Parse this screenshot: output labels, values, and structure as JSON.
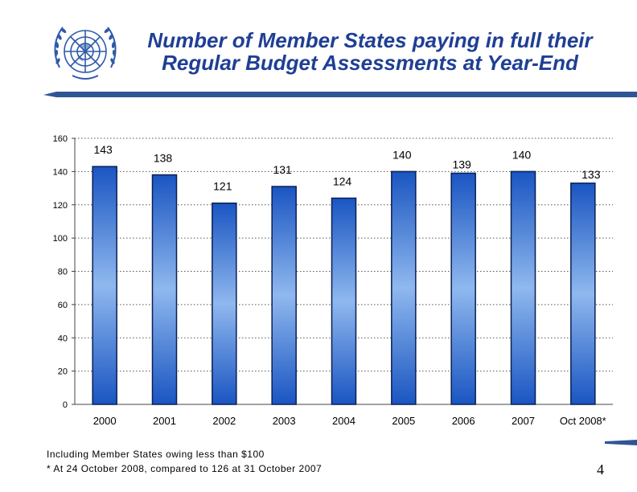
{
  "slide": {
    "title_line1": "Number of Member States paying in full their",
    "title_line2": "Regular Budget Assessments at Year-End",
    "footnote1": "Including Member States owing  less than $100",
    "footnote2": "* At 24 October 2008, compared to 126 at 31 October 2007",
    "page_number": "4",
    "logo": "un-emblem-icon"
  },
  "chart_data": {
    "type": "bar",
    "categories": [
      "2000",
      "2001",
      "2002",
      "2003",
      "2004",
      "2005",
      "2006",
      "2007",
      "Oct 2008*"
    ],
    "values": [
      143,
      138,
      121,
      131,
      124,
      140,
      139,
      140,
      133
    ],
    "value_labels": [
      "143",
      "138",
      "121",
      "131",
      "124",
      "140",
      "139",
      "140",
      "133"
    ],
    "label_offsets": [
      0,
      0,
      0,
      0,
      0,
      0,
      1,
      0,
      1
    ],
    "ylim": [
      0,
      160
    ],
    "yticks": [
      0,
      20,
      40,
      60,
      80,
      100,
      120,
      140,
      160
    ],
    "gridlines": true,
    "xlabel": "",
    "ylabel": "",
    "colors": {
      "bar_dark": "#1a55c2",
      "bar_light": "#8fb8ee",
      "title": "#1f3f94"
    }
  }
}
